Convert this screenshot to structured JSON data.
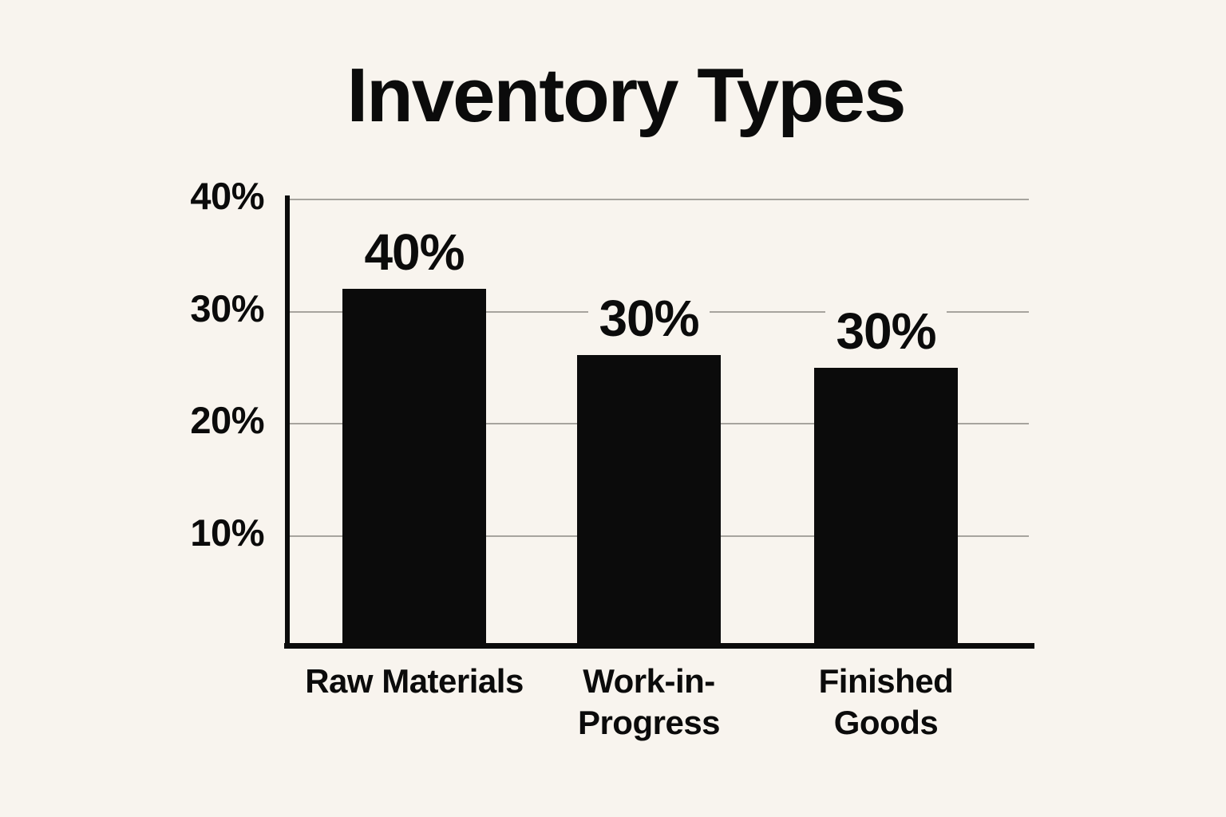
{
  "page": {
    "background_color": "#f8f4ee",
    "ink_color": "#0b0b0b",
    "gridline_color": "#a7a49e"
  },
  "title": "Inventory Types",
  "chart_data": {
    "type": "bar",
    "title": "Inventory Types",
    "categories": [
      "Raw Materials",
      "Work-in-Progress",
      "Finished Goods"
    ],
    "values": [
      40,
      30,
      30
    ],
    "unit": "%",
    "data_labels": [
      "40%",
      "30%",
      "30%"
    ],
    "category_label_lines": [
      [
        "Raw Materials"
      ],
      [
        "Work-in-",
        "Progress"
      ],
      [
        "Finished",
        "Goods"
      ]
    ],
    "y_ticks": [
      "40%",
      "30%",
      "20%",
      "10%"
    ],
    "y_tick_values": [
      40,
      30,
      20,
      10
    ],
    "ylim": [
      0,
      40
    ],
    "grid": "horizontal-only",
    "legend": "none",
    "bar_color": "#0b0b0b",
    "display_heights_pct": [
      32,
      26.1,
      25
    ]
  }
}
